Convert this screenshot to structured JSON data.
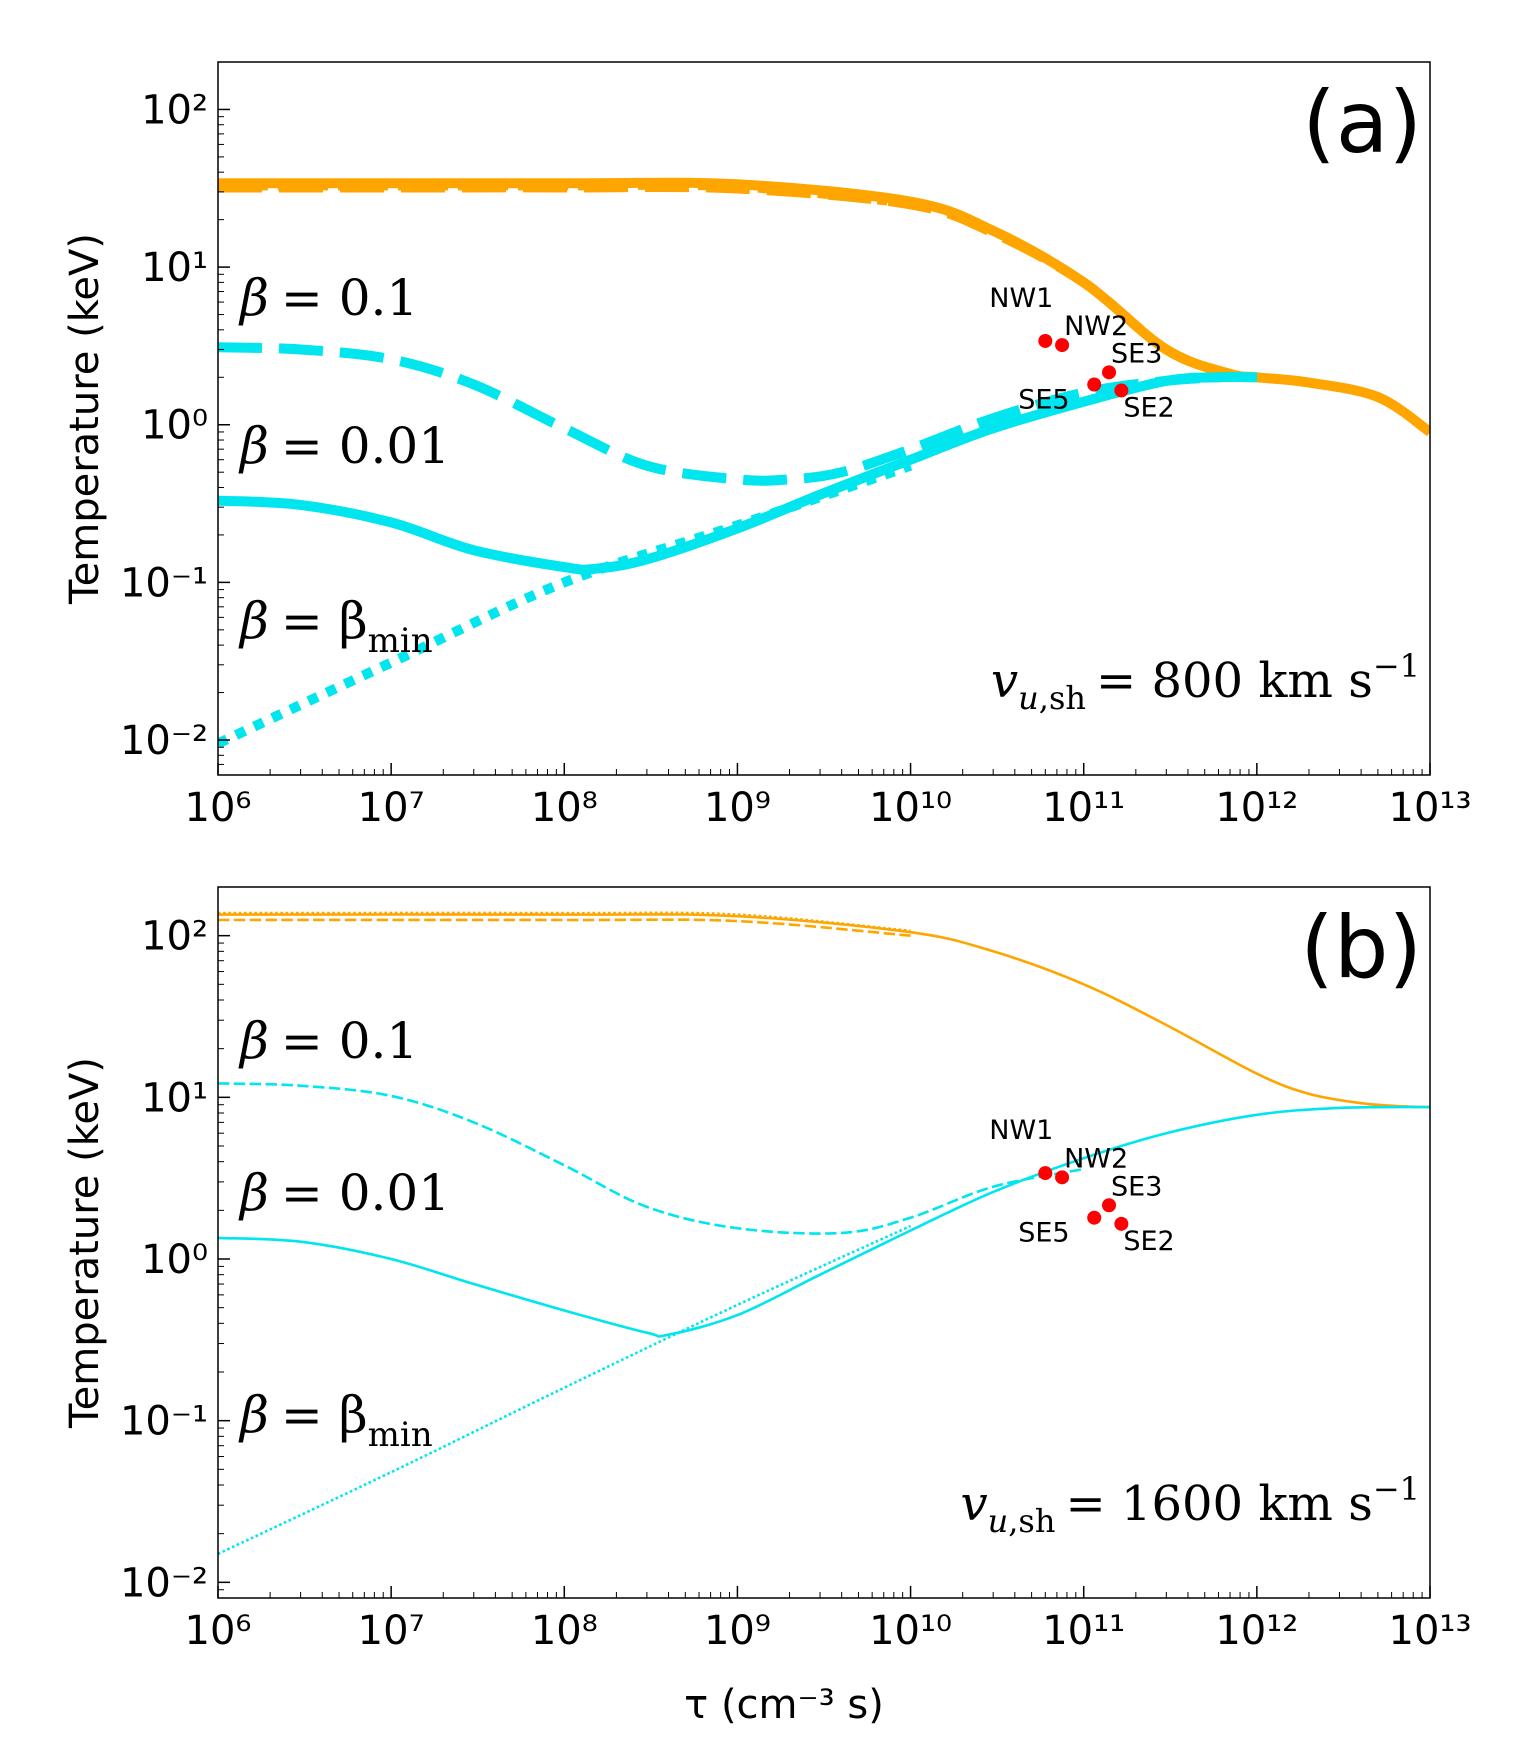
{
  "x_axis_label": "τ (cm⁻³ s)",
  "colors": {
    "ion": "#ffa500",
    "electron": "#00e5ee",
    "point": "#ff0000"
  },
  "chart_data": [
    {
      "type": "line",
      "panel_label": "(a)",
      "xscale": "log",
      "yscale": "log",
      "xlim": [
        1000000.0,
        10000000000000.0
      ],
      "ylim": [
        0.006,
        200
      ],
      "xlabel": "τ (cm⁻³ s)",
      "ylabel": "Temperature (keV)",
      "line_weight": "thick",
      "annotation": {
        "prefix": "= 800 km s",
        "unit_exp": "−1"
      },
      "curve_labels": [
        {
          "name": "beta-0.1",
          "value": "= 0.1"
        },
        {
          "name": "beta-0.01",
          "value": "= 0.01"
        },
        {
          "name": "beta-min",
          "value": "= β",
          "sub": "min"
        }
      ],
      "series": [
        {
          "name": "ion-solid",
          "color": "ion",
          "style": "solid",
          "x": [
            1000000.0,
            10000000.0,
            100000000.0,
            1000000000.0,
            10000000000.0,
            30000000000.0,
            100000000000.0,
            300000000000.0,
            700000000000.0,
            1000000000000.0,
            2000000000000.0,
            5000000000000.0,
            10000000000000.0
          ],
          "y": [
            34,
            34,
            34,
            33.5,
            26,
            17,
            8,
            3,
            2.1,
            2,
            1.85,
            1.5,
            0.9
          ]
        },
        {
          "name": "ion-dashed",
          "color": "ion",
          "style": "dashed",
          "x": [
            1000000.0,
            10000000.0,
            100000000.0,
            1000000000.0,
            10000000000.0,
            30000000000.0,
            100000000000.0,
            300000000000.0,
            700000000000.0,
            1000000000000.0
          ],
          "y": [
            32,
            32,
            32,
            31.5,
            25,
            16.5,
            8,
            3,
            2.1,
            2
          ]
        },
        {
          "name": "ion-dotted",
          "color": "ion",
          "style": "dotted",
          "x": [
            1000000.0,
            10000000.0,
            100000000.0,
            1000000000.0,
            10000000000.0
          ],
          "y": [
            33,
            33,
            33,
            32.5,
            25.5
          ]
        },
        {
          "name": "electron-beta-0.1",
          "color": "electron",
          "style": "dashed",
          "x": [
            1000000.0,
            3000000.0,
            10000000.0,
            30000000.0,
            100000000.0,
            300000000.0,
            1000000000.0,
            2000000000.0,
            4000000000.0,
            10000000000.0,
            30000000000.0,
            100000000000.0,
            300000000000.0,
            600000000000.0
          ],
          "y": [
            3.1,
            3.0,
            2.6,
            1.8,
            0.95,
            0.55,
            0.45,
            0.45,
            0.5,
            0.7,
            1.1,
            1.6,
            1.9,
            2.0
          ]
        },
        {
          "name": "electron-beta-0.01",
          "color": "electron",
          "style": "solid",
          "x": [
            1000000.0,
            3000000.0,
            10000000.0,
            30000000.0,
            100000000.0,
            150000000.0,
            300000000.0,
            1000000000.0,
            3000000000.0,
            10000000000.0,
            30000000000.0,
            100000000000.0,
            300000000000.0,
            600000000000.0,
            1000000000000.0
          ],
          "y": [
            0.33,
            0.31,
            0.24,
            0.16,
            0.125,
            0.122,
            0.14,
            0.22,
            0.36,
            0.6,
            0.95,
            1.4,
            1.9,
            2.0,
            2.0
          ]
        },
        {
          "name": "electron-beta-min",
          "color": "electron",
          "style": "dotted",
          "x": [
            1000000.0,
            10000000.0,
            100000000.0,
            1000000000.0,
            10000000000.0
          ],
          "y": [
            0.0095,
            0.031,
            0.1,
            0.23,
            0.55
          ]
        }
      ],
      "points": [
        {
          "label": "NW1",
          "x": 60000000000.0,
          "y": 3.4
        },
        {
          "label": "NW2",
          "x": 75000000000.0,
          "y": 3.2
        },
        {
          "label": "SE3",
          "x": 140000000000.0,
          "y": 2.15
        },
        {
          "label": "SE5",
          "x": 115000000000.0,
          "y": 1.8
        },
        {
          "label": "SE2",
          "x": 165000000000.0,
          "y": 1.65
        }
      ]
    },
    {
      "type": "line",
      "panel_label": "(b)",
      "xscale": "log",
      "yscale": "log",
      "xlim": [
        1000000.0,
        10000000000000.0
      ],
      "ylim": [
        0.008,
        200
      ],
      "xlabel": "τ (cm⁻³ s)",
      "ylabel": "Temperature (keV)",
      "line_weight": "thin",
      "annotation": {
        "prefix": "= 1600 km s",
        "unit_exp": "−1"
      },
      "curve_labels": [
        {
          "name": "beta-0.1",
          "value": "= 0.1"
        },
        {
          "name": "beta-0.01",
          "value": "= 0.01"
        },
        {
          "name": "beta-min",
          "value": "= β",
          "sub": "min"
        }
      ],
      "series": [
        {
          "name": "ion-solid",
          "color": "ion",
          "style": "solid",
          "x": [
            1000000.0,
            100000000.0,
            1000000000.0,
            10000000000.0,
            30000000000.0,
            100000000000.0,
            300000000000.0,
            1000000000000.0,
            2000000000000.0,
            4000000000000.0,
            7000000000000.0,
            10000000000000.0
          ],
          "y": [
            135,
            135,
            132,
            105,
            80,
            50,
            28,
            14,
            10.5,
            9.2,
            8.8,
            8.7
          ]
        },
        {
          "name": "ion-dashed",
          "color": "ion",
          "style": "dashed",
          "x": [
            1000000.0,
            100000000.0,
            1000000000.0,
            10000000000.0
          ],
          "y": [
            125,
            125,
            123,
            100
          ]
        },
        {
          "name": "ion-dotted",
          "color": "ion",
          "style": "dotted",
          "x": [
            1000000.0,
            100000000.0,
            1000000000.0,
            10000000000.0
          ],
          "y": [
            138,
            138,
            135,
            107
          ]
        },
        {
          "name": "electron-beta-0.1",
          "color": "electron",
          "style": "dashed",
          "x": [
            1000000.0,
            3000000.0,
            10000000.0,
            30000000.0,
            100000000.0,
            300000000.0,
            1000000000.0,
            4000000000.0,
            10000000000.0,
            30000000000.0,
            100000000000.0
          ],
          "y": [
            12.2,
            11.8,
            10.2,
            7.0,
            3.8,
            2.1,
            1.55,
            1.45,
            1.8,
            2.8,
            3.6
          ]
        },
        {
          "name": "electron-beta-0.01",
          "color": "electron",
          "style": "solid",
          "x": [
            1000000.0,
            3000000.0,
            10000000.0,
            30000000.0,
            100000000.0,
            300000000.0,
            400000000.0,
            1000000000.0,
            3000000000.0,
            10000000000.0,
            30000000000.0,
            100000000000.0,
            300000000000.0,
            1000000000000.0,
            3000000000000.0,
            10000000000000.0
          ],
          "y": [
            1.35,
            1.28,
            1.0,
            0.7,
            0.48,
            0.35,
            0.34,
            0.45,
            0.8,
            1.5,
            2.6,
            4.2,
            6.0,
            7.8,
            8.6,
            8.7
          ]
        },
        {
          "name": "electron-beta-min",
          "color": "electron",
          "style": "dotted",
          "x": [
            1000000.0,
            10000000.0,
            100000000.0,
            1000000000.0,
            10000000000.0
          ],
          "y": [
            0.015,
            0.048,
            0.16,
            0.52,
            1.6
          ]
        }
      ],
      "points": [
        {
          "label": "NW1",
          "x": 60000000000.0,
          "y": 3.4
        },
        {
          "label": "NW2",
          "x": 75000000000.0,
          "y": 3.2
        },
        {
          "label": "SE3",
          "x": 140000000000.0,
          "y": 2.15
        },
        {
          "label": "SE5",
          "x": 115000000000.0,
          "y": 1.8
        },
        {
          "label": "SE2",
          "x": 165000000000.0,
          "y": 1.65
        }
      ]
    }
  ]
}
